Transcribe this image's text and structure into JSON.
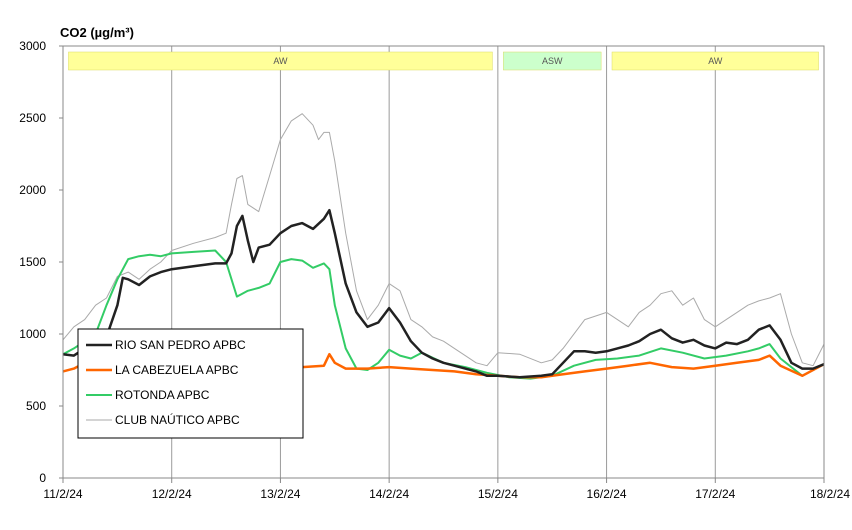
{
  "chart_data": {
    "type": "line",
    "title": "CO2 (µg/m³)",
    "xlabel": "",
    "ylabel": "",
    "ylim": [
      0,
      3000
    ],
    "yticks": [
      "0",
      "500",
      "1000",
      "1500",
      "2000",
      "2500",
      "3000"
    ],
    "xlim": [
      0,
      7
    ],
    "xticks": [
      "11/2/24",
      "12/2/24",
      "13/2/24",
      "14/2/24",
      "15/2/24",
      "16/2/24",
      "17/2/24",
      "18/2/24"
    ],
    "grid": "vertical",
    "legend_position": "bottom-left",
    "bands": [
      {
        "label": "AW",
        "from": 0.05,
        "to": 3.95,
        "color": "#ffff99"
      },
      {
        "label": "ASW",
        "from": 4.05,
        "to": 4.95,
        "color": "#ccffcc"
      },
      {
        "label": "AW",
        "from": 5.05,
        "to": 6.95,
        "color": "#ffff99"
      }
    ],
    "series": [
      {
        "name": "RIO SAN PEDRO APBC",
        "color": "#222222",
        "x": [
          0,
          0.1,
          0.2,
          0.3,
          0.4,
          0.5,
          0.55,
          0.6,
          0.7,
          0.8,
          0.9,
          1.0,
          1.2,
          1.4,
          1.5,
          1.55,
          1.6,
          1.65,
          1.7,
          1.75,
          1.8,
          1.9,
          2.0,
          2.1,
          2.2,
          2.3,
          2.4,
          2.45,
          2.5,
          2.6,
          2.7,
          2.8,
          2.9,
          3.0,
          3.1,
          3.2,
          3.3,
          3.4,
          3.5,
          3.6,
          3.7,
          3.8,
          3.9,
          4.0,
          4.2,
          4.4,
          4.5,
          4.6,
          4.7,
          4.8,
          4.9,
          5.0,
          5.1,
          5.2,
          5.3,
          5.4,
          5.5,
          5.6,
          5.7,
          5.8,
          5.9,
          6.0,
          6.1,
          6.2,
          6.3,
          6.4,
          6.5,
          6.6,
          6.7,
          6.8,
          6.9,
          7.0
        ],
        "values": [
          860,
          850,
          900,
          950,
          980,
          1200,
          1390,
          1380,
          1340,
          1400,
          1430,
          1450,
          1470,
          1490,
          1490,
          1560,
          1750,
          1820,
          1650,
          1500,
          1600,
          1620,
          1700,
          1750,
          1770,
          1730,
          1800,
          1860,
          1700,
          1350,
          1150,
          1050,
          1080,
          1180,
          1080,
          950,
          870,
          830,
          800,
          780,
          760,
          740,
          710,
          710,
          700,
          710,
          720,
          800,
          880,
          880,
          870,
          880,
          900,
          920,
          950,
          1000,
          1030,
          970,
          940,
          960,
          920,
          900,
          940,
          930,
          960,
          1030,
          1060,
          960,
          800,
          760,
          760,
          790
        ]
      },
      {
        "name": "LA CABEZUELA APBC",
        "color": "#ff6600",
        "x": [
          0,
          0.1,
          0.2,
          0.3,
          0.4,
          0.5,
          0.6,
          0.7,
          0.8,
          0.9,
          1.0,
          1.2,
          1.4,
          1.6,
          1.7,
          1.8,
          2.0,
          2.2,
          2.4,
          2.45,
          2.5,
          2.6,
          2.8,
          3.0,
          3.2,
          3.4,
          3.6,
          3.8,
          4.0,
          4.2,
          4.4,
          4.6,
          4.8,
          5.0,
          5.2,
          5.4,
          5.6,
          5.8,
          6.0,
          6.2,
          6.4,
          6.5,
          6.6,
          6.8,
          7.0
        ],
        "values": [
          740,
          760,
          800,
          780,
          760,
          760,
          770,
          760,
          770,
          760,
          770,
          780,
          780,
          780,
          770,
          760,
          760,
          770,
          780,
          860,
          800,
          760,
          760,
          770,
          760,
          750,
          740,
          720,
          710,
          700,
          700,
          720,
          740,
          760,
          780,
          800,
          770,
          760,
          780,
          800,
          820,
          850,
          780,
          710,
          790
        ]
      },
      {
        "name": "ROTONDA APBC",
        "color": "#33cc66",
        "x": [
          0,
          0.1,
          0.2,
          0.3,
          0.4,
          0.5,
          0.6,
          0.7,
          0.8,
          0.9,
          1.0,
          1.2,
          1.4,
          1.5,
          1.6,
          1.7,
          1.8,
          1.9,
          2.0,
          2.1,
          2.2,
          2.3,
          2.4,
          2.45,
          2.5,
          2.6,
          2.7,
          2.8,
          2.9,
          3.0,
          3.1,
          3.2,
          3.3,
          3.5,
          3.7,
          3.9,
          4.1,
          4.3,
          4.5,
          4.7,
          4.9,
          5.1,
          5.3,
          5.5,
          5.7,
          5.9,
          6.1,
          6.3,
          6.4,
          6.5,
          6.6,
          6.8,
          7.0
        ],
        "values": [
          860,
          900,
          950,
          1000,
          1200,
          1380,
          1520,
          1540,
          1550,
          1540,
          1560,
          1570,
          1580,
          1500,
          1260,
          1300,
          1320,
          1350,
          1500,
          1520,
          1510,
          1460,
          1490,
          1450,
          1200,
          900,
          760,
          750,
          800,
          890,
          850,
          830,
          870,
          800,
          770,
          730,
          700,
          690,
          710,
          780,
          820,
          830,
          850,
          900,
          870,
          830,
          850,
          880,
          900,
          930,
          830,
          710,
          790
        ]
      },
      {
        "name": "CLUB NAÚTICO  APBC",
        "color": "#aaaaaa",
        "x": [
          0,
          0.1,
          0.2,
          0.3,
          0.4,
          0.5,
          0.6,
          0.7,
          0.8,
          0.9,
          1.0,
          1.2,
          1.4,
          1.5,
          1.55,
          1.6,
          1.65,
          1.7,
          1.8,
          1.9,
          2.0,
          2.1,
          2.2,
          2.3,
          2.35,
          2.4,
          2.45,
          2.5,
          2.6,
          2.7,
          2.8,
          2.9,
          3.0,
          3.1,
          3.2,
          3.3,
          3.4,
          3.5,
          3.6,
          3.7,
          3.8,
          3.9,
          4.0,
          4.2,
          4.4,
          4.5,
          4.6,
          4.8,
          5.0,
          5.1,
          5.2,
          5.3,
          5.4,
          5.5,
          5.6,
          5.7,
          5.8,
          5.9,
          6.0,
          6.1,
          6.2,
          6.3,
          6.4,
          6.5,
          6.6,
          6.7,
          6.8,
          6.9,
          7.0
        ],
        "values": [
          960,
          1050,
          1100,
          1200,
          1250,
          1400,
          1430,
          1380,
          1450,
          1500,
          1580,
          1630,
          1670,
          1700,
          1900,
          2080,
          2100,
          1900,
          1850,
          2100,
          2350,
          2480,
          2530,
          2450,
          2350,
          2400,
          2400,
          2200,
          1700,
          1300,
          1100,
          1200,
          1350,
          1300,
          1100,
          1050,
          980,
          950,
          900,
          850,
          800,
          780,
          870,
          860,
          800,
          820,
          900,
          1100,
          1150,
          1100,
          1050,
          1150,
          1200,
          1280,
          1300,
          1200,
          1250,
          1100,
          1050,
          1100,
          1150,
          1200,
          1230,
          1250,
          1280,
          1000,
          800,
          780,
          930
        ]
      }
    ]
  }
}
